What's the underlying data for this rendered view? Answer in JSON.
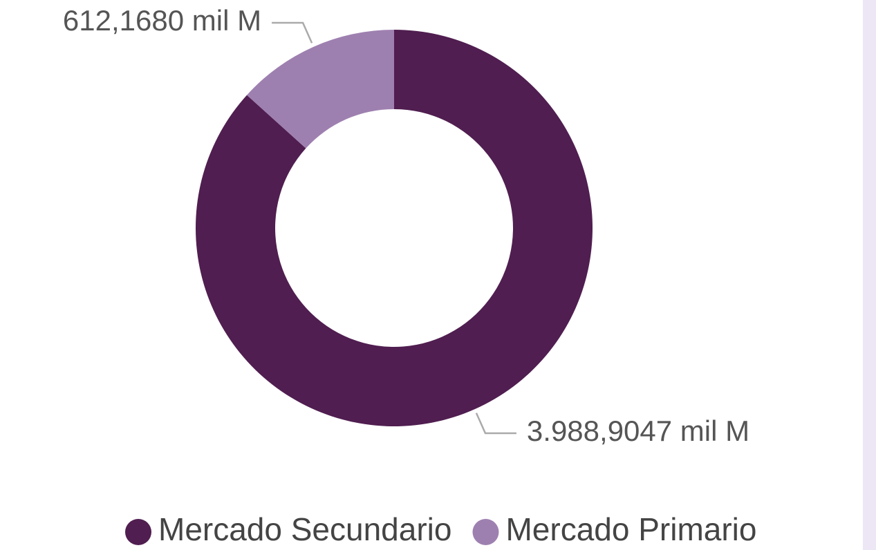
{
  "chart_data": {
    "type": "donut",
    "categories": [
      "Mercado Secundario",
      "Mercado Primario"
    ],
    "values": [
      3988.9047,
      612.168
    ],
    "value_labels": [
      "3.988,9047 mil M",
      "612,1680 mil M"
    ],
    "colors": [
      "#501e50",
      "#9e80b0"
    ]
  }
}
